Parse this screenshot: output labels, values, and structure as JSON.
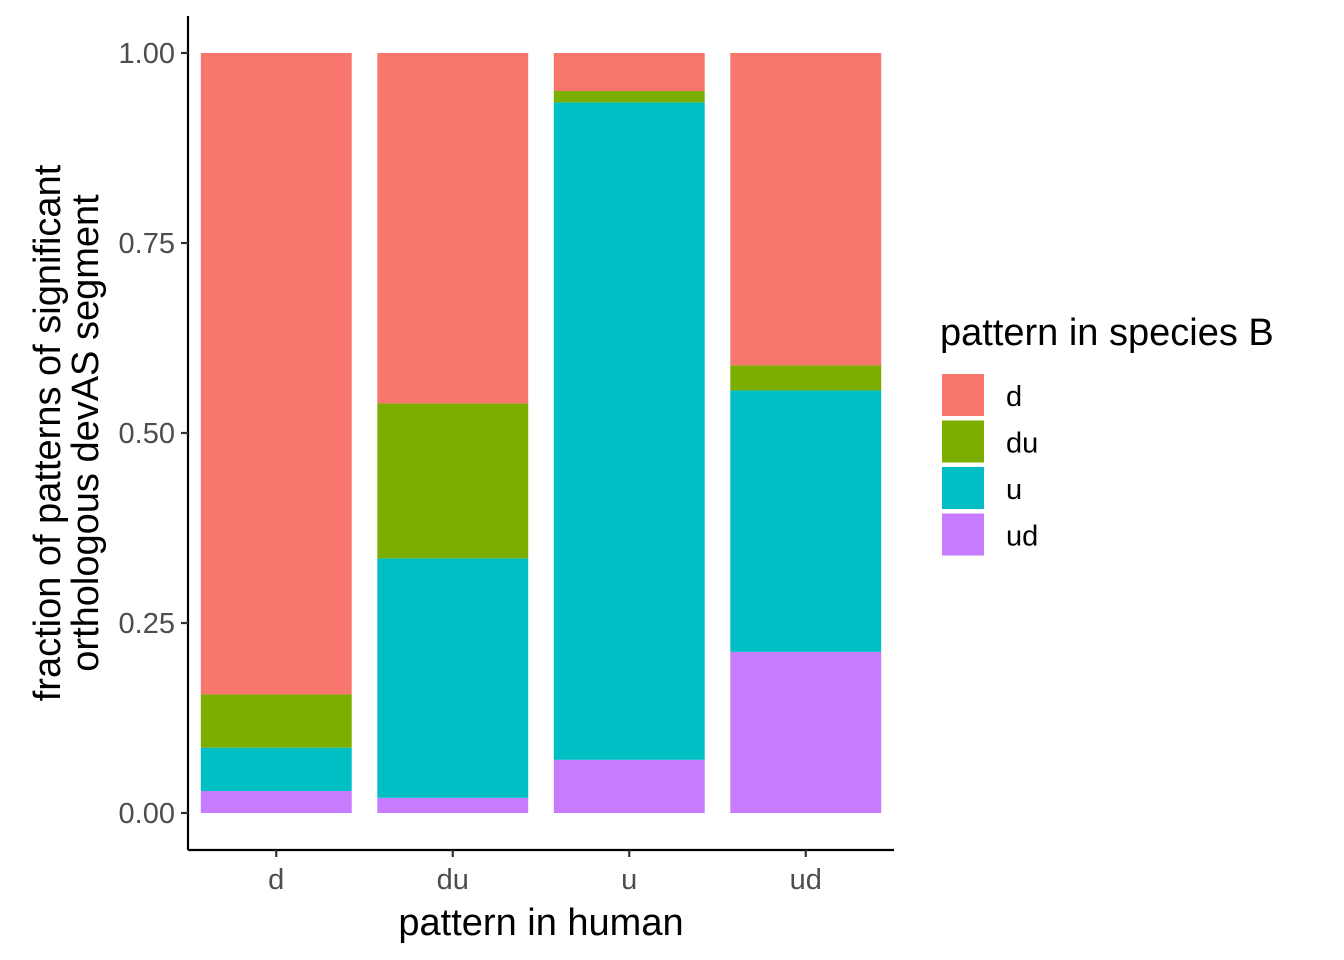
{
  "chart_data": {
    "type": "bar",
    "stacked": true,
    "xlabel": "pattern in human",
    "ylabel_lines": [
      "fraction of patterns of significant",
      "orthologous devAS segment"
    ],
    "ylim": [
      0,
      1
    ],
    "yticks": [
      0,
      0.25,
      0.5,
      0.75,
      1
    ],
    "ytick_labels": [
      "0.00",
      "0.25",
      "0.50",
      "0.75",
      "1.00"
    ],
    "categories": [
      "d",
      "du",
      "u",
      "ud"
    ],
    "grid": false,
    "legend": {
      "title": "pattern in species B",
      "position": "right"
    },
    "series": [
      {
        "name": "ud",
        "color": "#C77CFF",
        "values": [
          0.029,
          0.02,
          0.07,
          0.212
        ]
      },
      {
        "name": "u",
        "color": "#00BFC4",
        "values": [
          0.057,
          0.315,
          0.865,
          0.344
        ]
      },
      {
        "name": "du",
        "color": "#7CAE00",
        "values": [
          0.07,
          0.204,
          0.015,
          0.033
        ]
      },
      {
        "name": "d",
        "color": "#F8766D",
        "values": [
          0.844,
          0.461,
          0.05,
          0.411
        ]
      }
    ],
    "legend_order": [
      "d",
      "du",
      "u",
      "ud"
    ]
  }
}
